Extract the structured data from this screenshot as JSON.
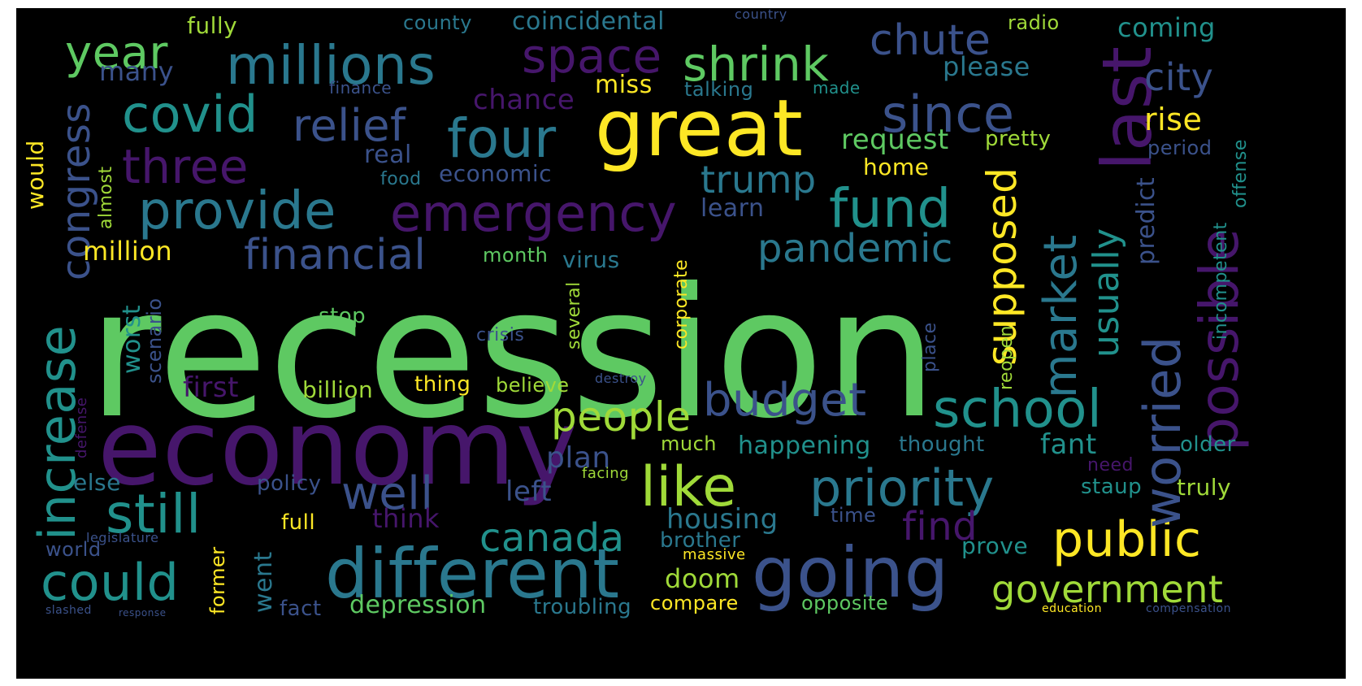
{
  "palette": {
    "background": "#000000",
    "green": "#5ec962",
    "purple": "#46166b",
    "yellow": "#fde725",
    "teal": "#21918c",
    "blue": "#3b528b",
    "lime": "#a0da39",
    "cyan": "#2a788e"
  },
  "words": {
    "recession": "recession",
    "economy": "economy",
    "great": "great",
    "last": "last",
    "millions": "millions",
    "space": "space",
    "shrink": "shrink",
    "chute": "chute",
    "year": "year",
    "covid": "covid",
    "relief": "relief",
    "four": "four",
    "since": "since",
    "three": "three",
    "provide": "provide",
    "emergency": "emergency",
    "fund": "fund",
    "congress": "congress",
    "financial": "financial",
    "pandemic": "pandemic",
    "trump": "trump",
    "possible": "possible",
    "worried": "worried",
    "market": "market",
    "supposed": "supposed",
    "usually": "usually",
    "increase": "increase",
    "budget": "budget",
    "school": "school",
    "people": "people",
    "still": "still",
    "well": "well",
    "like": "like",
    "priority": "priority",
    "find": "find",
    "canada": "canada",
    "could": "could",
    "different": "different",
    "going": "going",
    "public": "public",
    "government": "government",
    "million": "million",
    "city": "city",
    "rise": "rise",
    "coming": "coming",
    "please": "please",
    "miss": "miss",
    "chance": "chance",
    "request": "request",
    "economic": "economic",
    "home": "home",
    "learn": "learn",
    "many": "many",
    "fully": "fully",
    "county": "county",
    "coincidental": "coincidental",
    "radio": "radio",
    "finance": "finance",
    "talking": "talking",
    "made": "made",
    "real": "real",
    "food": "food",
    "pretty": "pretty",
    "period": "period",
    "would": "would",
    "almost": "almost",
    "predict": "predict",
    "offense": "offense",
    "incompetent": "incompetent",
    "month": "month",
    "virus": "virus",
    "corporate": "corporate",
    "worst": "worst",
    "scenario": "scenario",
    "stop": "stop",
    "first": "first",
    "billion": "billion",
    "thing": "thing",
    "believe": "believe",
    "crisis": "crisis",
    "several": "several",
    "place": "place",
    "reopen": "reopen",
    "plan": "plan",
    "much": "much",
    "happening": "happening",
    "thought": "thought",
    "fant": "fant",
    "older": "older",
    "else": "else",
    "policy": "policy",
    "left": "left",
    "facing": "facing",
    "need": "need",
    "staup": "staup",
    "truly": "truly",
    "think": "think",
    "housing": "housing",
    "time": "time",
    "full": "full",
    "brother": "brother",
    "prove": "prove",
    "world": "world",
    "legislature": "legislature",
    "massive": "massive",
    "former": "former",
    "went": "went",
    "doom": "doom",
    "fact": "fact",
    "depression": "depression",
    "troubling": "troubling",
    "compare": "compare",
    "opposite": "opposite",
    "defense": "defense",
    "destroy": "destroy",
    "country": "country",
    "slashed": "slashed",
    "response": "response",
    "education": "education",
    "compensation": "compensation"
  }
}
